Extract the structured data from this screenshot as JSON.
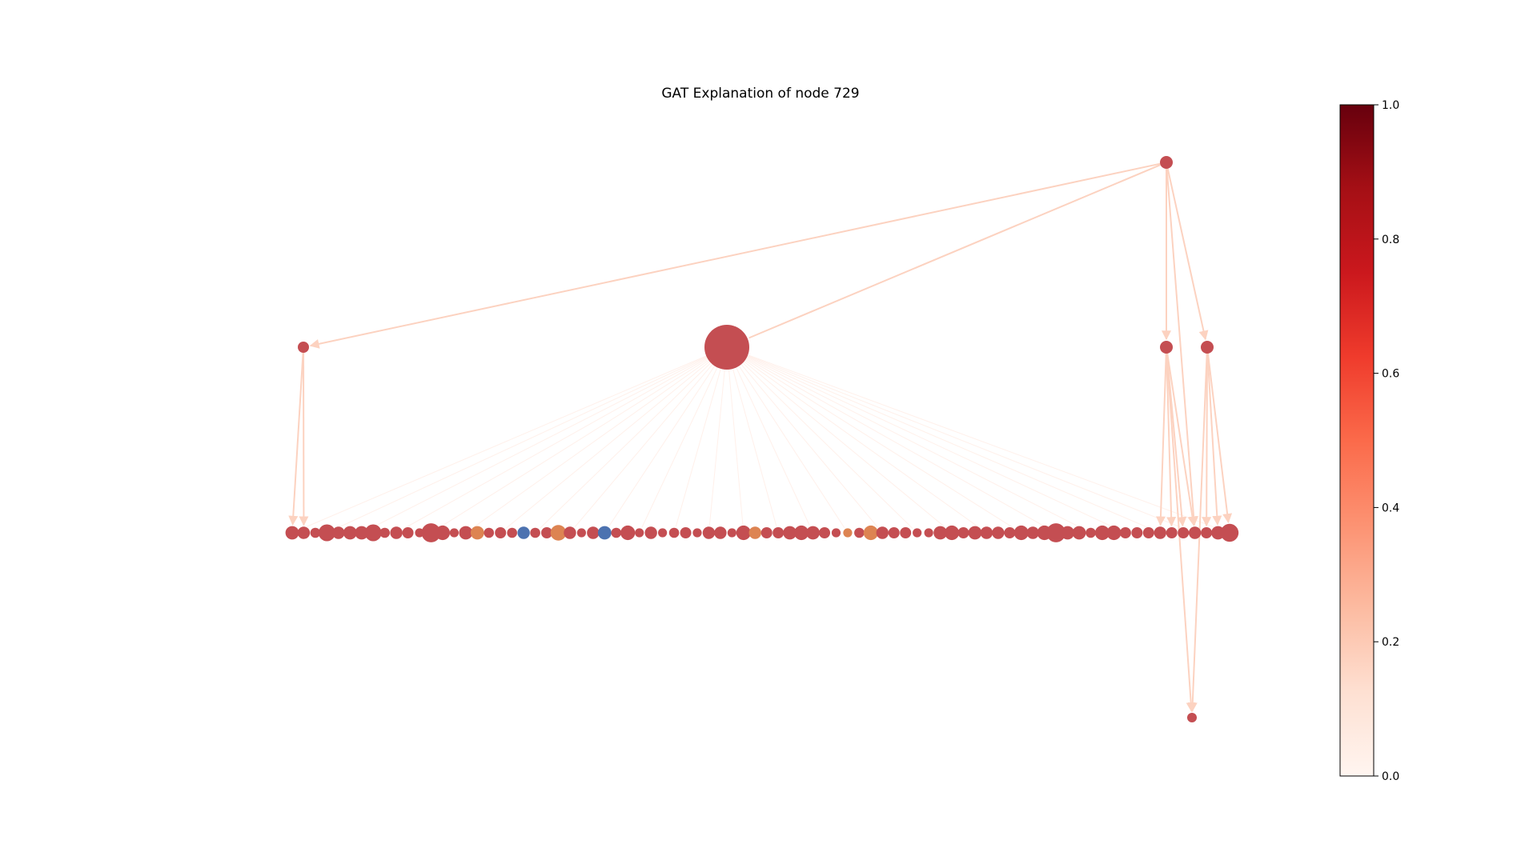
{
  "title": "GAT Explanation of node 729",
  "colorbar": {
    "colormap": "Reds",
    "range": [
      0.0,
      1.0
    ],
    "ticks": [
      "0.0",
      "0.2",
      "0.4",
      "0.6",
      "0.8",
      "1.0"
    ],
    "stops": [
      "#fff5f0",
      "#fee0d2",
      "#fcbba1",
      "#fc9272",
      "#fb6a4a",
      "#ef3b2c",
      "#cb181d",
      "#a50f15",
      "#67000d"
    ]
  },
  "colors": {
    "node_default": "#c44e52",
    "node_orange": "#dd8452",
    "node_blue": "#4c72b0",
    "edge": "#fcd2c0",
    "edge_faint": "#fff0ea"
  },
  "graph": {
    "top_node": {
      "id": "root",
      "color": "node_default"
    },
    "mid_nodes": [
      {
        "id": "m1",
        "color": "node_default",
        "size": "small"
      },
      {
        "id": "center",
        "color": "node_default",
        "size": "large"
      },
      {
        "id": "m3",
        "color": "node_default",
        "size": "small"
      },
      {
        "id": "m4",
        "color": "node_default",
        "size": "small"
      }
    ],
    "row_nodes": [
      {
        "c": "r",
        "s": 1.2
      },
      {
        "c": "r",
        "s": 1.1
      },
      {
        "c": "r",
        "s": 0.9
      },
      {
        "c": "r",
        "s": 1.5
      },
      {
        "c": "r",
        "s": 1.1
      },
      {
        "c": "r",
        "s": 1.2
      },
      {
        "c": "r",
        "s": 1.2
      },
      {
        "c": "r",
        "s": 1.5
      },
      {
        "c": "r",
        "s": 0.9
      },
      {
        "c": "r",
        "s": 1.1
      },
      {
        "c": "r",
        "s": 1.0
      },
      {
        "c": "r",
        "s": 0.8
      },
      {
        "c": "r",
        "s": 1.7
      },
      {
        "c": "r",
        "s": 1.3
      },
      {
        "c": "r",
        "s": 0.8
      },
      {
        "c": "r",
        "s": 1.2
      },
      {
        "c": "o",
        "s": 1.2
      },
      {
        "c": "r",
        "s": 0.9
      },
      {
        "c": "r",
        "s": 1.0
      },
      {
        "c": "r",
        "s": 0.9
      },
      {
        "c": "b",
        "s": 1.1
      },
      {
        "c": "r",
        "s": 0.9
      },
      {
        "c": "r",
        "s": 1.0
      },
      {
        "c": "o",
        "s": 1.4
      },
      {
        "c": "r",
        "s": 1.1
      },
      {
        "c": "r",
        "s": 0.8
      },
      {
        "c": "r",
        "s": 1.1
      },
      {
        "c": "b",
        "s": 1.2
      },
      {
        "c": "r",
        "s": 0.9
      },
      {
        "c": "r",
        "s": 1.3
      },
      {
        "c": "r",
        "s": 0.8
      },
      {
        "c": "r",
        "s": 1.1
      },
      {
        "c": "r",
        "s": 0.8
      },
      {
        "c": "r",
        "s": 0.9
      },
      {
        "c": "r",
        "s": 1.0
      },
      {
        "c": "r",
        "s": 0.8
      },
      {
        "c": "r",
        "s": 1.1
      },
      {
        "c": "r",
        "s": 1.1
      },
      {
        "c": "r",
        "s": 0.8
      },
      {
        "c": "r",
        "s": 1.3
      },
      {
        "c": "o",
        "s": 1.1
      },
      {
        "c": "r",
        "s": 1.0
      },
      {
        "c": "r",
        "s": 1.0
      },
      {
        "c": "r",
        "s": 1.2
      },
      {
        "c": "r",
        "s": 1.3
      },
      {
        "c": "r",
        "s": 1.2
      },
      {
        "c": "r",
        "s": 1.0
      },
      {
        "c": "r",
        "s": 0.8
      },
      {
        "c": "o",
        "s": 0.8
      },
      {
        "c": "r",
        "s": 0.9
      },
      {
        "c": "o",
        "s": 1.3
      },
      {
        "c": "r",
        "s": 1.1
      },
      {
        "c": "r",
        "s": 1.0
      },
      {
        "c": "r",
        "s": 1.0
      },
      {
        "c": "r",
        "s": 0.8
      },
      {
        "c": "r",
        "s": 0.8
      },
      {
        "c": "r",
        "s": 1.2
      },
      {
        "c": "r",
        "s": 1.3
      },
      {
        "c": "r",
        "s": 1.0
      },
      {
        "c": "r",
        "s": 1.2
      },
      {
        "c": "r",
        "s": 1.1
      },
      {
        "c": "r",
        "s": 1.1
      },
      {
        "c": "r",
        "s": 1.0
      },
      {
        "c": "r",
        "s": 1.3
      },
      {
        "c": "r",
        "s": 1.1
      },
      {
        "c": "r",
        "s": 1.3
      },
      {
        "c": "r",
        "s": 1.7
      },
      {
        "c": "r",
        "s": 1.2
      },
      {
        "c": "r",
        "s": 1.2
      },
      {
        "c": "r",
        "s": 0.9
      },
      {
        "c": "r",
        "s": 1.3
      },
      {
        "c": "r",
        "s": 1.3
      },
      {
        "c": "r",
        "s": 1.0
      },
      {
        "c": "r",
        "s": 1.0
      },
      {
        "c": "r",
        "s": 1.0
      },
      {
        "c": "r",
        "s": 1.1
      },
      {
        "c": "r",
        "s": 1.0
      },
      {
        "c": "r",
        "s": 1.0
      },
      {
        "c": "r",
        "s": 1.1
      },
      {
        "c": "r",
        "s": 1.0
      },
      {
        "c": "r",
        "s": 1.2
      },
      {
        "c": "r",
        "s": 1.6
      }
    ],
    "bottom_node": {
      "id": "bottom",
      "color": "node_default"
    }
  }
}
